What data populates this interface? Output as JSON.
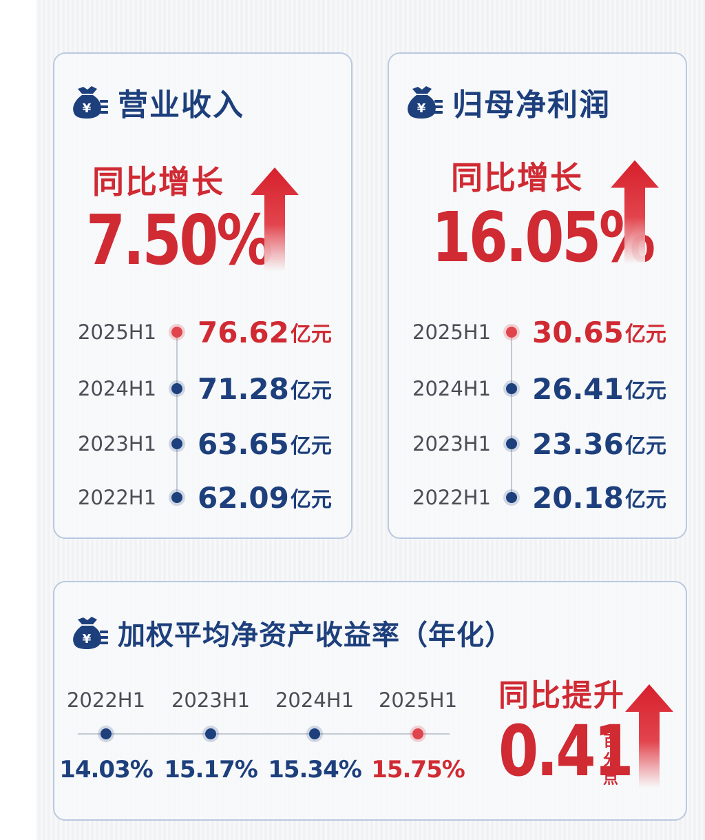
{
  "colors": {
    "navy": "#1d3f7c",
    "red": "#d02a33",
    "border": "#b9c9df"
  },
  "revenue": {
    "icon": "money-bag-icon",
    "title": "营业收入",
    "growth_label": "同比增长",
    "growth_value": "7.50%",
    "rows": [
      {
        "year": "2025H1",
        "value": "76.62",
        "unit": "亿元"
      },
      {
        "year": "2024H1",
        "value": "71.28",
        "unit": "亿元"
      },
      {
        "year": "2023H1",
        "value": "63.65",
        "unit": "亿元"
      },
      {
        "year": "2022H1",
        "value": "62.09",
        "unit": "亿元"
      }
    ]
  },
  "net_profit": {
    "icon": "money-bag-icon",
    "title": "归母净利润",
    "growth_label": "同比增长",
    "growth_value": "16.05%",
    "rows": [
      {
        "year": "2025H1",
        "value": "30.65",
        "unit": "亿元"
      },
      {
        "year": "2024H1",
        "value": "26.41",
        "unit": "亿元"
      },
      {
        "year": "2023H1",
        "value": "23.36",
        "unit": "亿元"
      },
      {
        "year": "2022H1",
        "value": "20.18",
        "unit": "亿元"
      }
    ]
  },
  "roe": {
    "icon": "money-bag-icon",
    "title": "加权平均净资产收益率（年化）",
    "items": [
      {
        "year": "2022H1",
        "value": "14.03%"
      },
      {
        "year": "2023H1",
        "value": "15.17%"
      },
      {
        "year": "2024H1",
        "value": "15.34%"
      },
      {
        "year": "2025H1",
        "value": "15.75%"
      }
    ],
    "change_label": "同比提升",
    "change_value": "0.41",
    "change_unit": [
      "百",
      "分",
      "点"
    ]
  }
}
